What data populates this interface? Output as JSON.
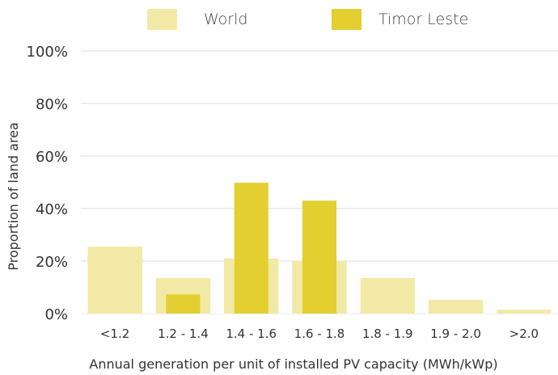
{
  "colors": {
    "world": "#f3e9a6",
    "timor": "#e3cf2f",
    "grid": "#e9e9e9",
    "text": "#333333"
  },
  "legend": {
    "world_label": "World",
    "timor_label": "Timor Leste"
  },
  "chart_data": {
    "type": "bar",
    "title": "",
    "xlabel": "Annual generation per unit of installed PV capacity (MWh/kWp)",
    "ylabel": "Proportion of land area",
    "ylim": [
      0,
      100
    ],
    "yticks": [
      "0%",
      "20%",
      "40%",
      "60%",
      "80%",
      "100%"
    ],
    "categories": [
      "<1.2",
      "1.2 - 1.4",
      "1.4 - 1.6",
      "1.6 - 1.8",
      "1.8 - 1.9",
      "1.9 - 2.0",
      ">2.0"
    ],
    "series": [
      {
        "name": "World",
        "values": [
          25.5,
          13.5,
          21,
          20,
          13.5,
          5.2,
          1.5
        ]
      },
      {
        "name": "Timor Leste",
        "values": [
          0,
          7.3,
          49.8,
          43,
          0,
          0,
          0
        ]
      }
    ],
    "grid": true,
    "legend_position": "top"
  }
}
